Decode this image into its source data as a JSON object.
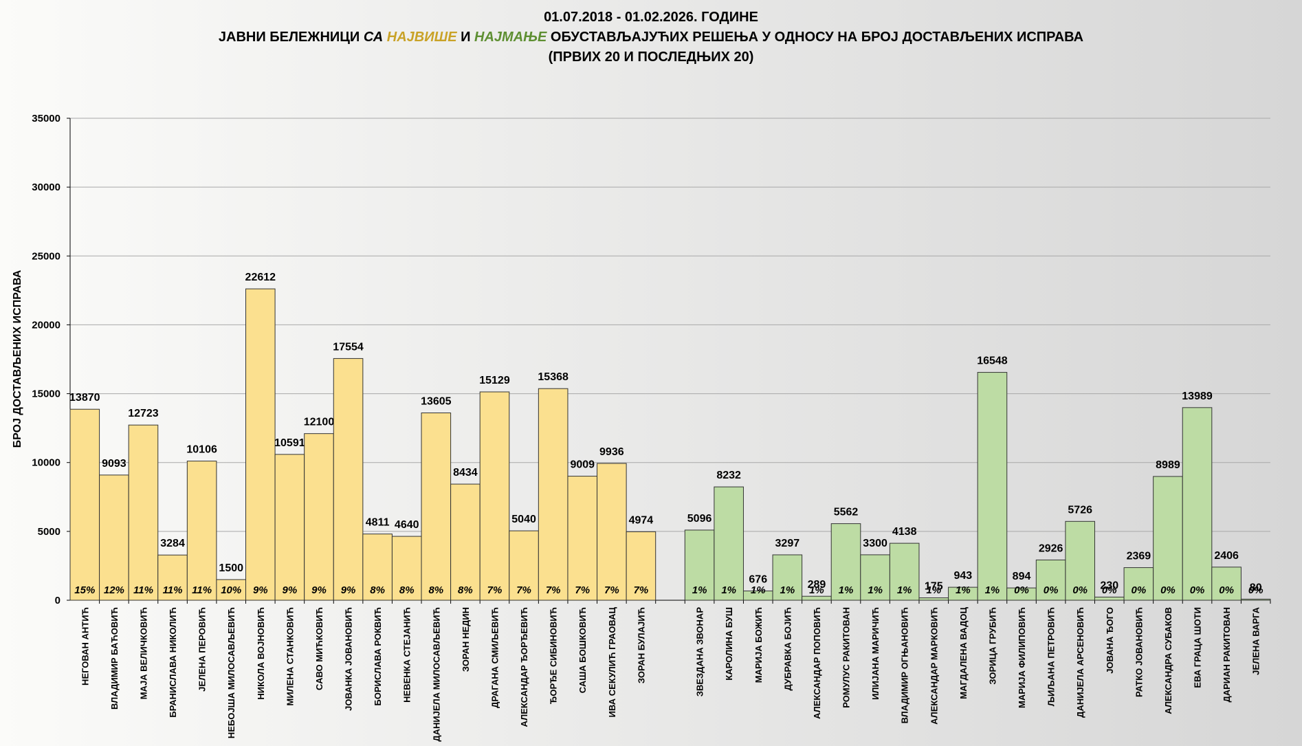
{
  "chart_data": {
    "type": "bar",
    "title": {
      "line1": "01.07.2018  - 01.02.2026.  ГОДИНЕ",
      "line2": [
        "ЈАВНИ БЕЛЕЖНИЦИ",
        "СА",
        "НАЈВИШЕ",
        "И",
        "НАЈМАЊЕ",
        "ОБУСТАВЉАЈУЋИХ РЕШЕЊА У ОДНОСУ НА БРОЈ ДОСТАВЉЕНИХ ИСПРАВА"
      ],
      "line3": "(ПРВИХ 20 И ПОСЛЕДЊИХ 20)"
    },
    "title_colors": {
      "most": "#c9a227",
      "least": "#5e8f32"
    },
    "ylabel": "БРОЈ ДОСТАВЉЕНИХ ИСПРАВА",
    "categories": [
      "НЕГОВАН АНТИЋ",
      "ВЛАДИМИР БАЋОВИЋ",
      "МАЈА ВЕЛИЧКОВИЋ",
      "БРАНИСЛАВА  НИКОЛИЋ",
      "ЈЕЛЕНА ПЕРОВИЋ",
      "НЕБОЈША МИЛОСАВЉЕВИЋ",
      "НИКОЛА ВОЈНОВИЋ",
      "МИЛЕНА СТАНКОВИЋ",
      "САВО МИЋКОВИЋ",
      "ЈОВАНКА ЈОВАНОВИЋ",
      "БОРИСЛАВА  РОКВИЋ",
      "НЕВЕНКА СТЕЈАНИЋ",
      "ДАНИЈЕЛА  МИЛОСАВЉЕВИЋ",
      "ЗОРАН НЕДИН",
      "ДРАГАНА СМИЉЕВИЋ",
      "АЛЕКСАНДАР  ЂОРЂЕВИЋ",
      "ЂОРЂЕ СИБИНОВИЋ",
      "САША БОШКОВИЋ",
      "ИВА СЕКУЛИЋ  ГРАОВАЦ",
      "ЗОРАН БУЛАЈИЋ",
      null,
      "ЗВЕЗДАНА ЗВОНАР",
      "КАРОЛИНА БУШ",
      "МАРИЈА БОЖИЋ",
      "ДУБРАВКА БОЈИЋ",
      "АЛЕКСАНДАР  ПОПОВИЋ",
      "РОМУЛУС РАКИТОВАН",
      "ИЛИЈАНА МАРИЧИЋ",
      "ВЛАДИМИР  ОГЊАНОВИЋ",
      "АЛЕКСАНДАР  МАРКОВИЋ",
      "МАГДАЛЕНА ВАДОЦ",
      "ЗОРИЦА ГРУБИЋ",
      "МАРИЈА ФИЛИПОВИЋ",
      "ЉИЉАНА ПЕТРОВИЋ",
      "ДАНИЈЕЛА АРСЕНОВИЋ",
      "ЈОВАНА ЂОГО",
      "РАТКО ЈОВАНОВИЋ",
      "АЛЕКСАНДРА СУБАКОВ",
      "ЕВА ГРАЦА ШОТИ",
      "ДАРИАН РАКИТОВАН",
      "ЈЕЛЕНА ВАРГА"
    ],
    "values": [
      13870,
      9093,
      12723,
      3284,
      10106,
      1500,
      22612,
      10591,
      12100,
      17554,
      4811,
      4640,
      13605,
      8434,
      15129,
      5040,
      15368,
      9009,
      9936,
      4974,
      null,
      5096,
      8232,
      676,
      3297,
      289,
      5562,
      3300,
      4138,
      175,
      943,
      16548,
      894,
      2926,
      5726,
      230,
      2369,
      8989,
      13989,
      2406,
      80
    ],
    "shares": [
      "15%",
      "12%",
      "11%",
      "11%",
      "11%",
      "10%",
      "9%",
      "9%",
      "9%",
      "9%",
      "8%",
      "8%",
      "8%",
      "8%",
      "7%",
      "7%",
      "7%",
      "7%",
      "7%",
      "7%",
      null,
      "1%",
      "1%",
      "1%",
      "1%",
      "1%",
      "1%",
      "1%",
      "1%",
      "1%",
      "1%",
      "1%",
      "0%",
      "0%",
      "0%",
      "0%",
      "0%",
      "0%",
      "0%",
      "0%",
      "0%"
    ],
    "bar_colors": [
      "#fbe08f",
      "#fbe08f",
      "#fbe08f",
      "#fbe08f",
      "#fbe08f",
      "#fbe08f",
      "#fbe08f",
      "#fbe08f",
      "#fbe08f",
      "#fbe08f",
      "#fbe08f",
      "#fbe08f",
      "#fbe08f",
      "#fbe08f",
      "#fbe08f",
      "#fbe08f",
      "#fbe08f",
      "#fbe08f",
      "#fbe08f",
      "#fbe08f",
      null,
      "#bddca4",
      "#bddca4",
      "#bddca4",
      "#bddca4",
      "#bddca4",
      "#bddca4",
      "#bddca4",
      "#bddca4",
      "#bddca4",
      "#bddca4",
      "#bddca4",
      "#bddca4",
      "#bddca4",
      "#bddca4",
      "#bddca4",
      "#bddca4",
      "#bddca4",
      "#bddca4",
      "#bddca4",
      "#bddca4"
    ],
    "ylim": [
      0,
      35000
    ],
    "yticks": [
      0,
      5000,
      10000,
      15000,
      20000,
      25000,
      30000,
      35000
    ],
    "grid": true
  }
}
